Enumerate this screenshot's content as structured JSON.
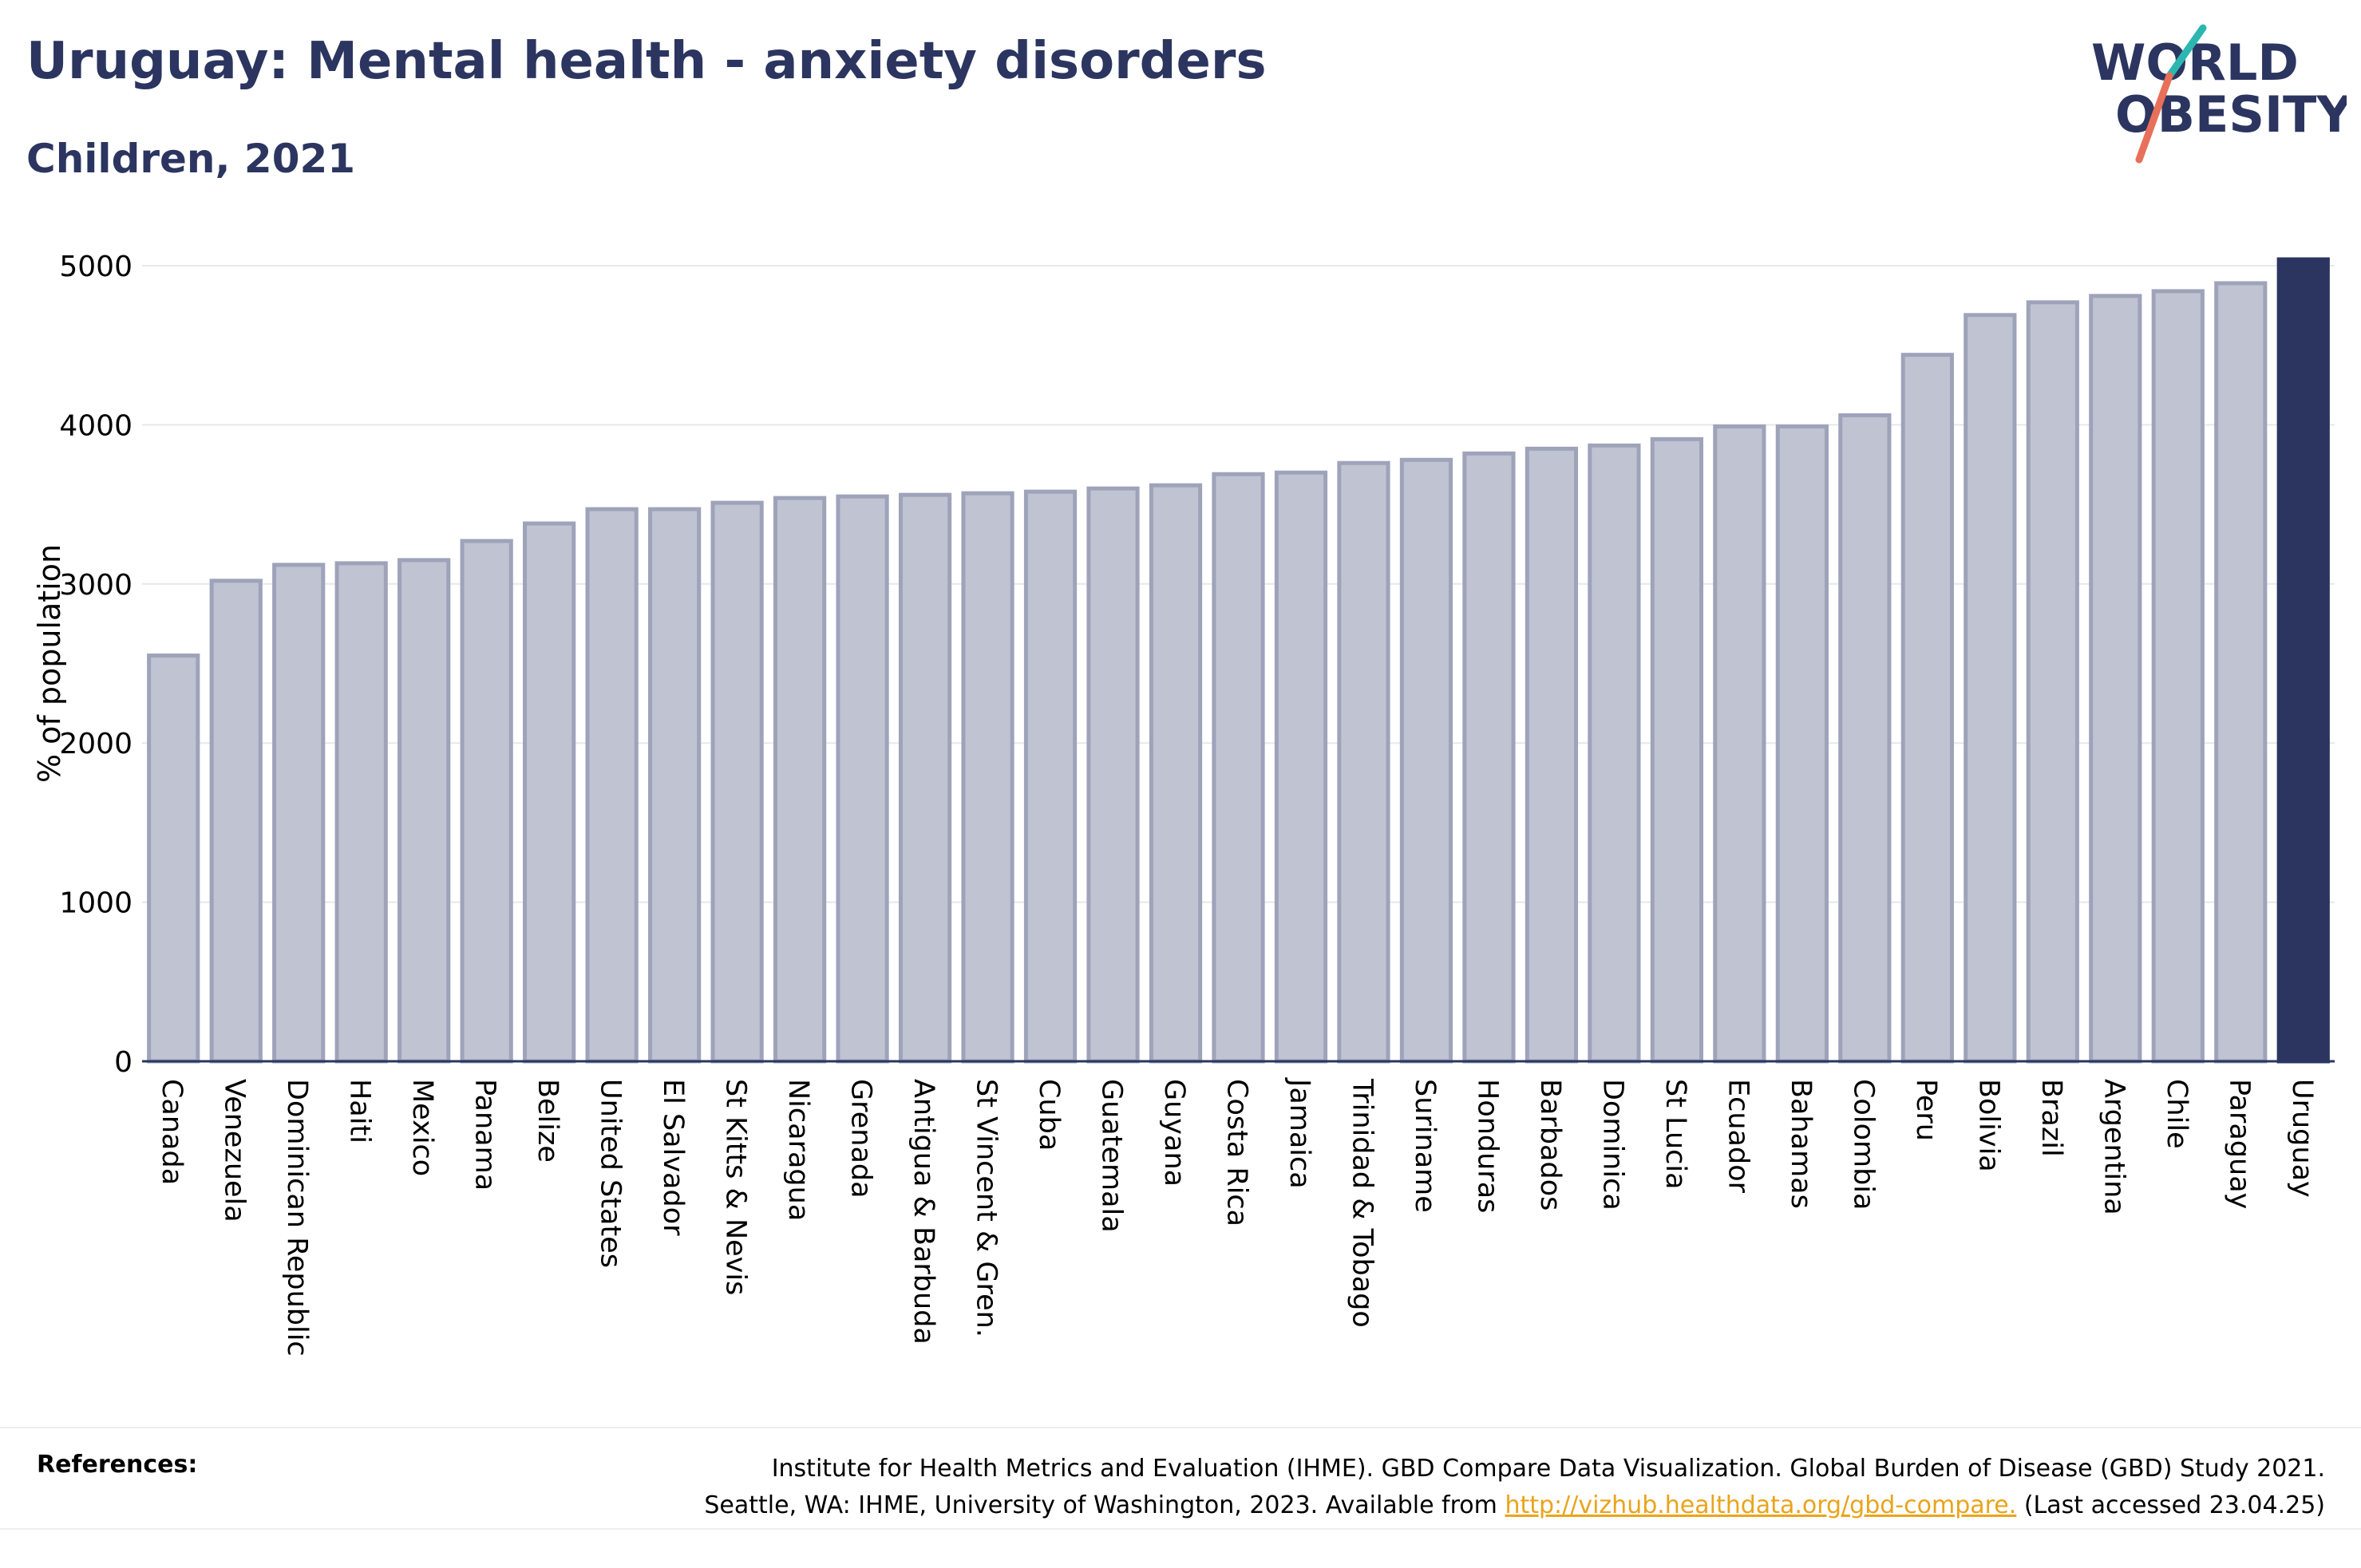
{
  "title": "Uruguay: Mental health - anxiety disorders",
  "subtitle": "Children, 2021",
  "logo": {
    "line1": "WORLD",
    "line2": "OBESITY",
    "accent_colors": [
      "#2bb7b0",
      "#e8705a"
    ]
  },
  "chart_data": {
    "type": "bar",
    "ylabel": "% of population",
    "xlabel": "",
    "ylim": [
      0,
      5000
    ],
    "yticks": [
      0,
      1000,
      2000,
      3000,
      4000,
      5000
    ],
    "grid": true,
    "highlight": "Uruguay",
    "colors": {
      "bar": "#c0c3d1",
      "bar_edge": "#9ea3ba",
      "highlight": "#2b3560",
      "grid": "#e6e8ee"
    },
    "categories": [
      "Canada",
      "Venezuela",
      "Dominican Republic",
      "Haiti",
      "Mexico",
      "Panama",
      "Belize",
      "United States",
      "El Salvador",
      "St Kitts & Nevis",
      "Nicaragua",
      "Grenada",
      "Antigua & Barbuda",
      "St Vincent & Gren.",
      "Cuba",
      "Guatemala",
      "Guyana",
      "Costa Rica",
      "Jamaica",
      "Trinidad & Tobago",
      "Suriname",
      "Honduras",
      "Barbados",
      "Dominica",
      "St Lucia",
      "Ecuador",
      "Bahamas",
      "Colombia",
      "Peru",
      "Bolivia",
      "Brazil",
      "Argentina",
      "Chile",
      "Paraguay",
      "Uruguay"
    ],
    "values": [
      2550,
      3020,
      3120,
      3130,
      3150,
      3270,
      3380,
      3470,
      3470,
      3510,
      3540,
      3550,
      3560,
      3570,
      3580,
      3600,
      3620,
      3690,
      3700,
      3760,
      3780,
      3820,
      3850,
      3870,
      3910,
      3990,
      3990,
      4060,
      4440,
      4690,
      4770,
      4810,
      4840,
      4890,
      5040
    ]
  },
  "references": {
    "label": "References:",
    "line1": "Institute for Health Metrics and Evaluation (IHME). GBD Compare Data Visualization. Global Burden of Disease (GBD) Study 2021.",
    "line2_prefix": "Seattle, WA: IHME, University of Washington, 2023. Available from",
    "link": "http://vizhub.healthdata.org/gbd-compare.",
    "line2_suffix": "(Last accessed 23.04.25)"
  }
}
